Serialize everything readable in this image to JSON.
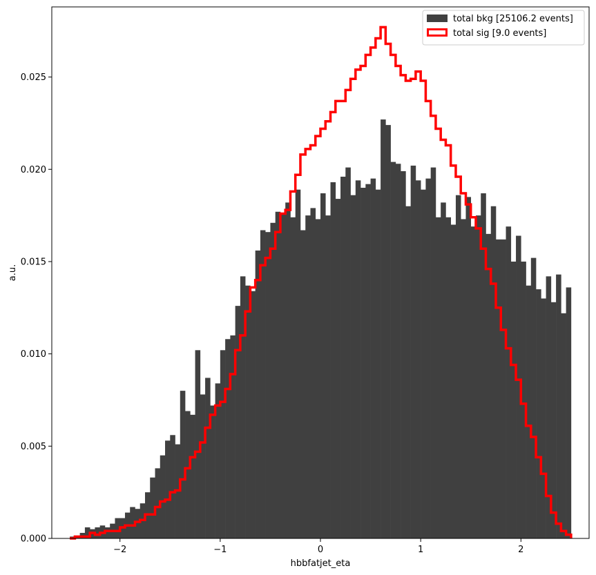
{
  "chart_data": {
    "type": "bar",
    "xlabel": "hbbfatjet_eta",
    "ylabel": "a.u.",
    "xlim": [
      -2.68,
      2.68
    ],
    "ylim": [
      0,
      0.0288
    ],
    "x_ticks": [
      -2,
      -1,
      0,
      1,
      2
    ],
    "x_tick_labels": [
      "−2",
      "−1",
      "0",
      "1",
      "2"
    ],
    "y_ticks": [
      0.0,
      0.005,
      0.01,
      0.015,
      0.02,
      0.025
    ],
    "y_tick_labels": [
      "0.000",
      "0.005",
      "0.010",
      "0.015",
      "0.020",
      "0.025"
    ],
    "grid": false,
    "legend_position": "top-right",
    "bins": {
      "start": -2.5,
      "width": 0.05,
      "count": 100
    },
    "series": [
      {
        "name": "total bkg [25106.2 events]",
        "style": "filled",
        "color": "#404040",
        "values": [
          0.0001,
          0.0001,
          0.0003,
          0.0006,
          0.0005,
          0.0006,
          0.0007,
          0.0006,
          0.0008,
          0.0011,
          0.0011,
          0.0014,
          0.0017,
          0.0016,
          0.0019,
          0.0025,
          0.0033,
          0.0038,
          0.0045,
          0.0053,
          0.0056,
          0.0051,
          0.008,
          0.0069,
          0.0067,
          0.0102,
          0.0078,
          0.0087,
          0.0072,
          0.0084,
          0.0102,
          0.0108,
          0.011,
          0.0126,
          0.0142,
          0.0137,
          0.0134,
          0.0156,
          0.0167,
          0.0166,
          0.0171,
          0.0177,
          0.0176,
          0.0182,
          0.0174,
          0.0189,
          0.0167,
          0.0175,
          0.0179,
          0.0173,
          0.0187,
          0.0175,
          0.0193,
          0.0184,
          0.0196,
          0.0201,
          0.0186,
          0.0194,
          0.019,
          0.0192,
          0.0195,
          0.0189,
          0.0227,
          0.0224,
          0.0204,
          0.0203,
          0.0199,
          0.018,
          0.0202,
          0.0194,
          0.0189,
          0.0195,
          0.0201,
          0.0174,
          0.0182,
          0.0174,
          0.017,
          0.0186,
          0.0173,
          0.0185,
          0.0169,
          0.0175,
          0.0187,
          0.0165,
          0.018,
          0.0162,
          0.0162,
          0.0169,
          0.015,
          0.0164,
          0.015,
          0.0137,
          0.0152,
          0.0135,
          0.013,
          0.0142,
          0.0128,
          0.0143,
          0.0122,
          0.0136
        ]
      },
      {
        "name": "total sig [9.0 events]",
        "style": "step",
        "color": "#ff0000",
        "values": [
          0.0,
          0.0001,
          0.0001,
          0.0001,
          0.0003,
          0.0002,
          0.0003,
          0.0004,
          0.0004,
          0.0004,
          0.0006,
          0.0007,
          0.0007,
          0.0009,
          0.001,
          0.0013,
          0.0013,
          0.0017,
          0.002,
          0.0021,
          0.0025,
          0.0026,
          0.0032,
          0.0038,
          0.0044,
          0.0047,
          0.0052,
          0.006,
          0.0067,
          0.0072,
          0.0074,
          0.0081,
          0.0089,
          0.0102,
          0.011,
          0.0123,
          0.0136,
          0.014,
          0.0148,
          0.0152,
          0.0157,
          0.0166,
          0.0176,
          0.0178,
          0.0188,
          0.0197,
          0.0208,
          0.0211,
          0.0213,
          0.0218,
          0.0222,
          0.0226,
          0.0231,
          0.0237,
          0.0237,
          0.0243,
          0.0249,
          0.0254,
          0.0256,
          0.0262,
          0.0266,
          0.0271,
          0.0277,
          0.0268,
          0.0262,
          0.0256,
          0.0251,
          0.0248,
          0.0249,
          0.0253,
          0.0248,
          0.0237,
          0.0229,
          0.0222,
          0.0216,
          0.0213,
          0.0202,
          0.0196,
          0.0187,
          0.0181,
          0.0174,
          0.0168,
          0.0157,
          0.0146,
          0.0138,
          0.0125,
          0.0113,
          0.0103,
          0.0094,
          0.0086,
          0.0073,
          0.0061,
          0.0055,
          0.0044,
          0.0035,
          0.0023,
          0.0014,
          0.0008,
          0.0004,
          0.0002
        ]
      }
    ]
  }
}
